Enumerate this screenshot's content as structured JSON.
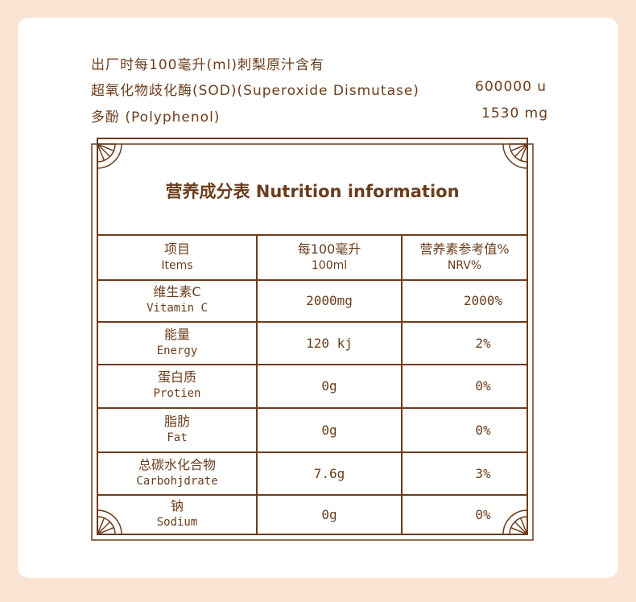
{
  "intro": {
    "heading": "出厂时每100毫升(ml)刺梨原汁含有",
    "items": [
      {
        "label": "超氧化物歧化酶(SOD)(Superoxide Dismutase)",
        "value": "600000 u"
      },
      {
        "label": "多酚 (Polyphenol)",
        "value": "1530 mg"
      }
    ]
  },
  "table": {
    "title": "营养成分表 Nutrition information",
    "headers": [
      {
        "zh": "项目",
        "en": "Items"
      },
      {
        "zh": "每100毫升",
        "en": "100ml"
      },
      {
        "zh": "营养素参考值%",
        "en": "NRV%"
      }
    ],
    "rows": [
      {
        "zh": "维生素C",
        "en": "Vitamin C",
        "amount": "2000mg",
        "nrv": "2000%"
      },
      {
        "zh": "能量",
        "en": "Energy",
        "amount": "120 kj",
        "nrv": "2%"
      },
      {
        "zh": "蛋白质",
        "en": "Protien",
        "amount": "0g",
        "nrv": "0%"
      },
      {
        "zh": "脂肪",
        "en": "Fat",
        "amount": "0g",
        "nrv": "0%"
      },
      {
        "zh": "总碳水化合物",
        "en": "Carbohjdrate",
        "amount": "7.6g",
        "nrv": "3%"
      },
      {
        "zh": "钠",
        "en": "Sodium",
        "amount": "0g",
        "nrv": "0%"
      }
    ]
  },
  "colors": {
    "text": "#6b3d1c",
    "background": "#fbe3d3",
    "card": "#ffffff"
  }
}
